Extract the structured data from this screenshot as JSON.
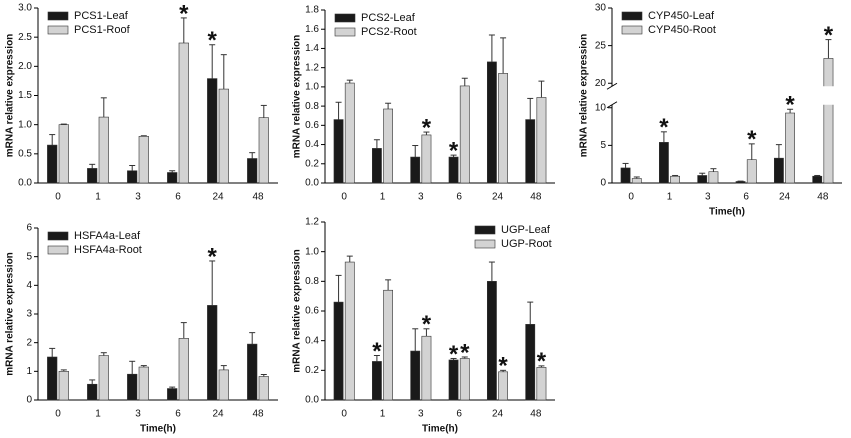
{
  "chart_data": [
    {
      "type": "bar",
      "ylabel": "mRNA relative expression",
      "categories": [
        "0",
        "1",
        "3",
        "6",
        "24",
        "48"
      ],
      "ylim": [
        0,
        3
      ],
      "yticks": [
        {
          "value": 0,
          "label": "0.0"
        },
        0.5,
        {
          "value": 1,
          "label": "1.0"
        },
        1.5,
        {
          "value": 2,
          "label": "2.0"
        },
        2.5,
        {
          "value": 3,
          "label": "3.0"
        }
      ],
      "legend": "upper left",
      "series": [
        {
          "name": "PCS1-Leaf",
          "color": "#1a1a1a",
          "values": [
            0.65,
            0.25,
            0.21,
            0.18,
            1.79,
            0.42
          ],
          "errors": [
            0.18,
            0.07,
            0.09,
            0.03,
            0.58,
            0.1
          ]
        },
        {
          "name": "PCS1-Roof",
          "color": "#d3d3d3",
          "values": [
            1.0,
            1.13,
            0.8,
            2.4,
            1.61,
            1.12
          ],
          "errors": [
            0.01,
            0.33,
            0.01,
            0.43,
            0.59,
            0.21
          ]
        }
      ],
      "annotations": [
        {
          "text": "*",
          "category_index": 3,
          "series_index": 1
        },
        {
          "text": "*",
          "category_index": 4,
          "series_index": 0
        }
      ]
    },
    {
      "type": "bar",
      "ylabel": "mRNA relative expression",
      "categories": [
        "0",
        "1",
        "3",
        "6",
        "24",
        "48"
      ],
      "ylim": [
        0,
        1.8
      ],
      "yticks": [
        {
          "value": 0,
          "label": "0.0"
        },
        0.2,
        0.4,
        0.6,
        0.8,
        {
          "value": 1,
          "label": "1.0"
        },
        1.2,
        1.4,
        1.6,
        1.8
      ],
      "legend": "upper left",
      "series": [
        {
          "name": "PCS2-Leaf",
          "color": "#1a1a1a",
          "values": [
            0.66,
            0.36,
            0.27,
            0.27,
            1.26,
            0.66
          ],
          "errors": [
            0.18,
            0.09,
            0.12,
            0.02,
            0.28,
            0.22
          ]
        },
        {
          "name": "PCS2-Root",
          "color": "#d3d3d3",
          "values": [
            1.04,
            0.77,
            0.5,
            1.01,
            1.14,
            0.89
          ],
          "errors": [
            0.03,
            0.06,
            0.03,
            0.08,
            0.37,
            0.17
          ]
        }
      ],
      "annotations": [
        {
          "text": "*",
          "category_index": 2,
          "series_index": 1
        },
        {
          "text": "*",
          "category_index": 3,
          "series_index": 0
        }
      ]
    },
    {
      "type": "bar",
      "ylabel": "mRNA relative expression",
      "xlabel": "Time(h)",
      "categories": [
        "0",
        "1",
        "3",
        "6",
        "24",
        "48"
      ],
      "ylim": [
        0,
        30
      ],
      "axis_break": [
        10,
        20
      ],
      "yticks": [
        0,
        5,
        10,
        20,
        25,
        30
      ],
      "legend": "upper left",
      "series": [
        {
          "name": "CYP450-Leaf",
          "color": "#1a1a1a",
          "values": [
            2.0,
            5.4,
            1.0,
            0.2,
            3.3,
            0.9
          ],
          "errors": [
            0.6,
            1.4,
            0.3,
            0.05,
            1.8,
            0.1
          ]
        },
        {
          "name": "CYP450-Root",
          "color": "#d3d3d3",
          "values": [
            0.6,
            0.9,
            1.5,
            3.1,
            9.3,
            23.3
          ],
          "errors": [
            0.2,
            0.1,
            0.4,
            2.1,
            0.5,
            2.5
          ]
        }
      ],
      "annotations": [
        {
          "text": "*",
          "category_index": 1,
          "series_index": 0
        },
        {
          "text": "*",
          "category_index": 3,
          "series_index": 1
        },
        {
          "text": "*",
          "category_index": 4,
          "series_index": 1
        },
        {
          "text": "*",
          "category_index": 5,
          "series_index": 1
        }
      ]
    },
    {
      "type": "bar",
      "ylabel": "mRNA relative expression",
      "xlabel": "Time(h)",
      "categories": [
        "0",
        "1",
        "3",
        "6",
        "24",
        "48"
      ],
      "ylim": [
        0,
        6
      ],
      "yticks": [
        0,
        1,
        2,
        3,
        4,
        5,
        6
      ],
      "legend": "upper left",
      "series": [
        {
          "name": "HSFA4a-Leaf",
          "color": "#1a1a1a",
          "values": [
            1.5,
            0.55,
            0.9,
            0.4,
            3.3,
            1.95
          ],
          "errors": [
            0.3,
            0.15,
            0.45,
            0.05,
            1.55,
            0.4
          ]
        },
        {
          "name": "HSFA4a-Root",
          "color": "#d3d3d3",
          "values": [
            1.0,
            1.55,
            1.15,
            2.15,
            1.05,
            0.82
          ],
          "errors": [
            0.05,
            0.1,
            0.05,
            0.55,
            0.15,
            0.07
          ]
        }
      ],
      "annotations": [
        {
          "text": "*",
          "category_index": 4,
          "series_index": 0
        }
      ]
    },
    {
      "type": "bar",
      "ylabel": "mRNA relative expression",
      "xlabel": "Time(h)",
      "categories": [
        "0",
        "1",
        "3",
        "6",
        "24",
        "48"
      ],
      "ylim": [
        0,
        1.2
      ],
      "yticks": [
        {
          "value": 0,
          "label": "0.0"
        },
        0.2,
        0.4,
        0.6,
        0.8,
        {
          "value": 1,
          "label": "1.0"
        },
        1.2
      ],
      "legend": "upper right",
      "series": [
        {
          "name": "UGP-Leaf",
          "color": "#1a1a1a",
          "values": [
            0.66,
            0.26,
            0.33,
            0.27,
            0.8,
            0.51
          ],
          "errors": [
            0.18,
            0.04,
            0.15,
            0.01,
            0.13,
            0.15
          ]
        },
        {
          "name": "UGP-Root",
          "color": "#d3d3d3",
          "values": [
            0.93,
            0.74,
            0.43,
            0.28,
            0.19,
            0.22
          ],
          "errors": [
            0.04,
            0.07,
            0.05,
            0.01,
            0.01,
            0.01
          ]
        }
      ],
      "annotations": [
        {
          "text": "*",
          "category_index": 1,
          "series_index": 0
        },
        {
          "text": "*",
          "category_index": 2,
          "series_index": 1
        },
        {
          "text": "*",
          "category_index": 3,
          "series_index": 0
        },
        {
          "text": "*",
          "category_index": 3,
          "series_index": 1
        },
        {
          "text": "*",
          "category_index": 4,
          "series_index": 1
        },
        {
          "text": "*",
          "category_index": 5,
          "series_index": 1
        }
      ]
    }
  ]
}
